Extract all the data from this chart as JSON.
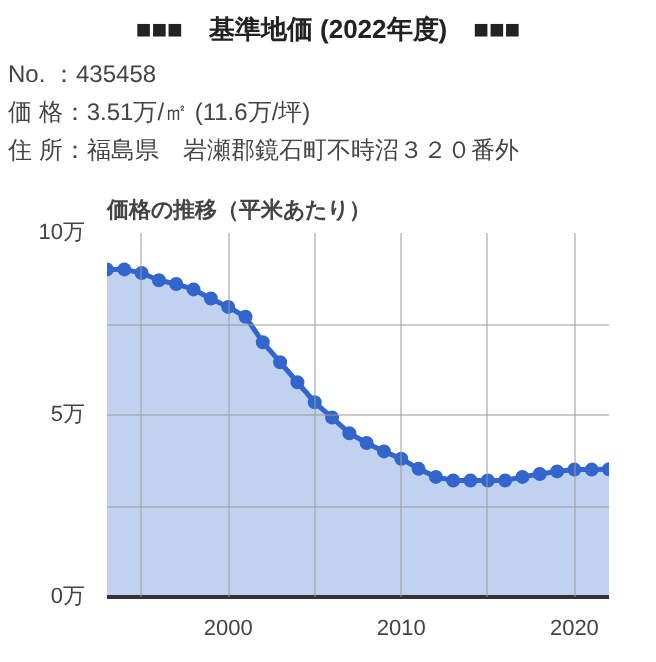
{
  "chart_data": {
    "type": "area",
    "title": "■■■　基準地価 (2022年度)　■■■",
    "subtitle": "価格の推移（平米あたり）",
    "annotations": [
      "No. ：435458",
      "価 格：3.51万/㎡ (11.6万/坪)",
      "住 所：福島県　岩瀬郡鏡石町不時沼３２０番外"
    ],
    "x": [
      1993,
      1994,
      1995,
      1996,
      1997,
      1998,
      1999,
      2000,
      2001,
      2002,
      2003,
      2004,
      2005,
      2006,
      2007,
      2008,
      2009,
      2010,
      2011,
      2012,
      2013,
      2014,
      2015,
      2016,
      2017,
      2018,
      2019,
      2020,
      2021,
      2022
    ],
    "series": [
      {
        "color": "#3366cc",
        "values": [
          9.0,
          9.0,
          8.9,
          8.7,
          8.6,
          8.45,
          8.2,
          7.97,
          7.7,
          7.0,
          6.45,
          5.9,
          5.35,
          4.93,
          4.5,
          4.23,
          4.0,
          3.8,
          3.52,
          3.3,
          3.2,
          3.2,
          3.2,
          3.2,
          3.3,
          3.38,
          3.45,
          3.5,
          3.5,
          3.51
        ]
      }
    ],
    "xlim": [
      1993,
      2022
    ],
    "ylim": [
      0,
      10
    ],
    "xticks": [
      {
        "value": 1995,
        "label": null
      },
      {
        "value": 2000,
        "label": "2000"
      },
      {
        "value": 2005,
        "label": null
      },
      {
        "value": 2010,
        "label": "2010"
      },
      {
        "value": 2015,
        "label": null
      },
      {
        "value": 2020,
        "label": "2020"
      }
    ],
    "yticks": [
      {
        "value": 0,
        "label": "0万"
      },
      {
        "value": 2.5,
        "label": null
      },
      {
        "value": 5,
        "label": "5万"
      },
      {
        "value": 7.5,
        "label": null
      },
      {
        "value": 10,
        "label": "10万"
      }
    ],
    "grid": true,
    "marker": "circle"
  }
}
